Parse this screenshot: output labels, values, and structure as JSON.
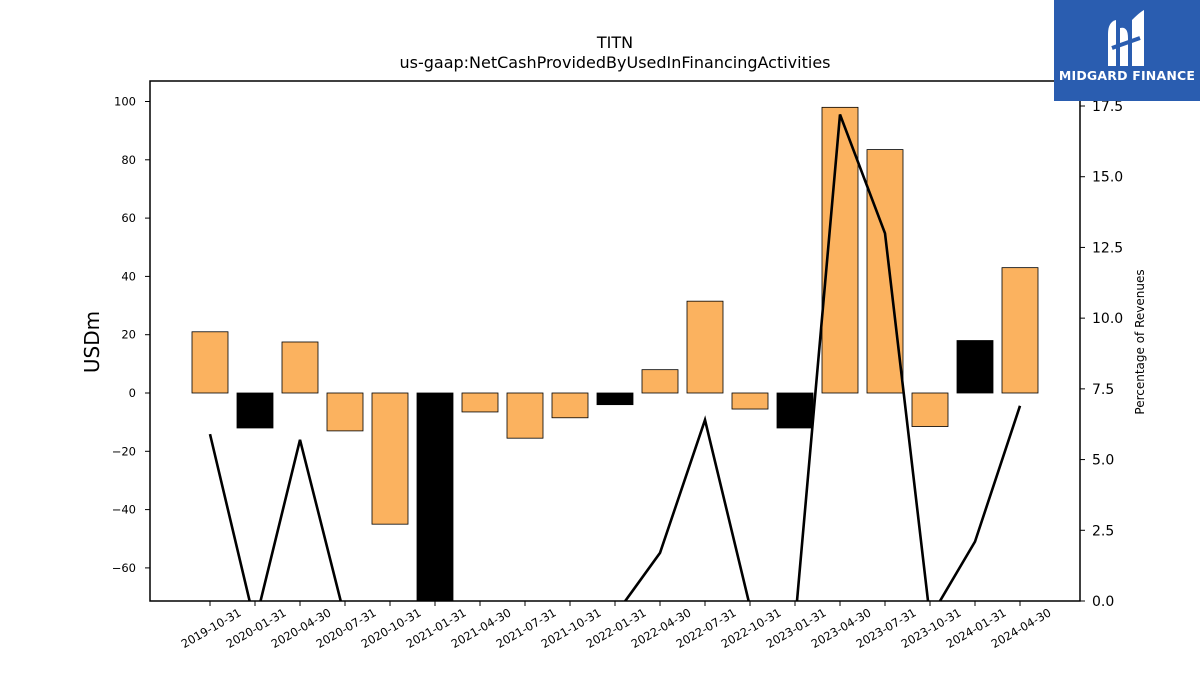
{
  "chart_data": {
    "type": "bar",
    "title": "TITN",
    "subtitle": "us-gaap:NetCashProvidedByUsedInFinancingActivities",
    "ylabel": "USDm",
    "y2label": "Percentage of Revenues",
    "ylim": [
      -71,
      107
    ],
    "y2lim": [
      0,
      17.5
    ],
    "yticks": [
      -60,
      -40,
      -20,
      0,
      20,
      40,
      60,
      80,
      100
    ],
    "y2ticks": [
      0.0,
      2.5,
      5.0,
      7.5,
      10.0,
      12.5,
      15.0,
      17.5
    ],
    "categories": [
      "2019-10-31",
      "2020-01-31",
      "2020-04-30",
      "2020-07-31",
      "2020-10-31",
      "2021-01-31",
      "2021-04-30",
      "2021-07-31",
      "2021-10-31",
      "2022-01-31",
      "2022-04-30",
      "2022-07-31",
      "2022-10-31",
      "2023-01-31",
      "2023-04-30",
      "2023-07-31",
      "2023-10-31",
      "2024-01-31",
      "2024-04-30"
    ],
    "series": [
      {
        "type": "bar",
        "values": [
          21,
          -12,
          17.5,
          -13,
          -45,
          -75,
          -6.5,
          -15.5,
          -8.5,
          -4,
          8,
          31.5,
          -5.5,
          -12,
          98,
          83.5,
          -11.5,
          18,
          43
        ],
        "colors": [
          "#fbb25f",
          "#000000",
          "#fbb25f",
          "#fbb25f",
          "#fbb25f",
          "#000000",
          "#fbb25f",
          "#fbb25f",
          "#fbb25f",
          "#000000",
          "#fbb25f",
          "#fbb25f",
          "#fbb25f",
          "#000000",
          "#fbb25f",
          "#fbb25f",
          "#fbb25f",
          "#000000",
          "#fbb25f"
        ]
      },
      {
        "type": "line",
        "axis": "right",
        "color": "#000000",
        "values": [
          5.9,
          -0.8,
          5.7,
          -0.6,
          -1.5,
          -3.0,
          -1.0,
          -1.8,
          -1.0,
          -0.5,
          1.7,
          6.4,
          -0.2,
          -0.8,
          17.2,
          13.0,
          -0.6,
          2.1,
          6.9
        ]
      }
    ]
  },
  "logo": {
    "text": "MIDGARD FINANCE",
    "background": "#2a5db0"
  }
}
